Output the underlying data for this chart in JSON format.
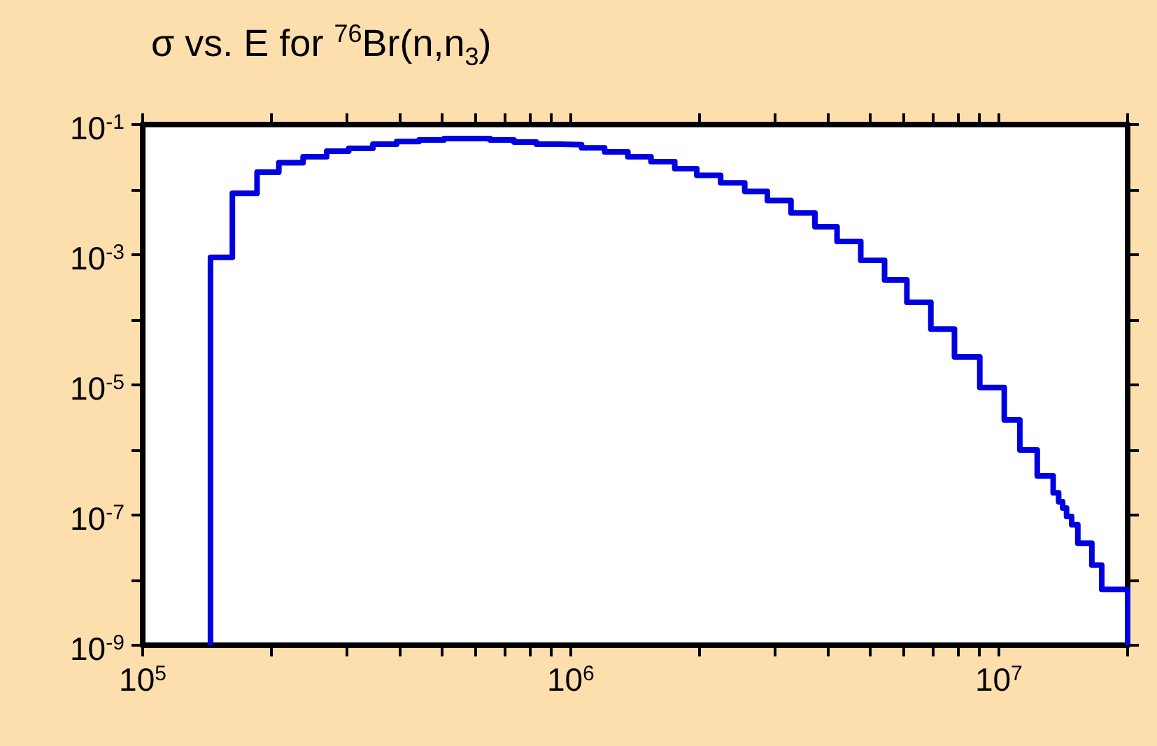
{
  "chart_data": {
    "type": "step",
    "title": "σ vs. E for $^{76}$Br(n,n$_{3}$)",
    "x": [
      144000,
      162000,
      185000,
      208000,
      237000,
      269000,
      303000,
      345000,
      392000,
      442000,
      506000,
      570000,
      648000,
      737000,
      831000,
      945000,
      1060000,
      1200000,
      1360000,
      1540000,
      1750000,
      1970000,
      2240000,
      2550000,
      2880000,
      3270000,
      3720000,
      4190000,
      4760000,
      5410000,
      6100000,
      6940000,
      7880000,
      9030000,
      10300000,
      11200000,
      12300000,
      13400000,
      13800000,
      14100000,
      14400000,
      14800000,
      15300000,
      16500000,
      17400000,
      20000000,
      20000000
    ],
    "series": [
      {
        "color": "#0000e0",
        "values": [
          1e-09,
          0.00091,
          0.0088,
          0.0186,
          0.026,
          0.032,
          0.039,
          0.043,
          0.05,
          0.055,
          0.058,
          0.061,
          0.061,
          0.058,
          0.054,
          0.05,
          0.049,
          0.044,
          0.038,
          0.032,
          0.027,
          0.021,
          0.0166,
          0.0127,
          0.0094,
          0.0068,
          0.0044,
          0.0027,
          0.0016,
          0.00082,
          0.00041,
          0.000186,
          7.2e-05,
          2.7e-05,
          9.1e-06,
          2.9e-06,
          1e-06,
          4e-07,
          2.2e-07,
          1.6e-07,
          1.28e-07,
          9.5e-08,
          7.1e-08,
          3.7e-08,
          1.7e-08,
          7.2e-09,
          1e-09
        ]
      }
    ],
    "log": "xy",
    "grid": false,
    "xlim": [
      100000,
      20000000
    ],
    "xticks": [
      {
        "value": 100000,
        "label": "10$^{5}$"
      },
      {
        "value": 200000,
        "label": null
      },
      {
        "value": 300000,
        "label": null
      },
      {
        "value": 400000,
        "label": null
      },
      {
        "value": 500000,
        "label": null
      },
      {
        "value": 600000,
        "label": null
      },
      {
        "value": 700000,
        "label": null
      },
      {
        "value": 800000,
        "label": null
      },
      {
        "value": 900000,
        "label": null
      },
      {
        "value": 1000000,
        "label": "10$^{6}$"
      },
      {
        "value": 2000000,
        "label": null
      },
      {
        "value": 3000000,
        "label": null
      },
      {
        "value": 4000000,
        "label": null
      },
      {
        "value": 5000000,
        "label": null
      },
      {
        "value": 6000000,
        "label": null
      },
      {
        "value": 7000000,
        "label": null
      },
      {
        "value": 8000000,
        "label": null
      },
      {
        "value": 9000000,
        "label": null
      },
      {
        "value": 10000000,
        "label": "10$^{7}$"
      },
      {
        "value": 20000000,
        "label": null
      }
    ],
    "ylim": [
      1e-09,
      0.1
    ],
    "yticks": [
      {
        "value": 1e-09,
        "label": "10$^{-9}$"
      },
      {
        "value": 1e-08,
        "label": null
      },
      {
        "value": 1e-07,
        "label": "10$^{-7}$"
      },
      {
        "value": 1e-06,
        "label": null
      },
      {
        "value": 1e-05,
        "label": "10$^{-5}$"
      },
      {
        "value": 0.0001,
        "label": null
      },
      {
        "value": 0.001,
        "label": "10$^{-3}$"
      },
      {
        "value": 0.01,
        "label": null
      },
      {
        "value": 0.1,
        "label": "10$^{-1}$"
      }
    ]
  }
}
